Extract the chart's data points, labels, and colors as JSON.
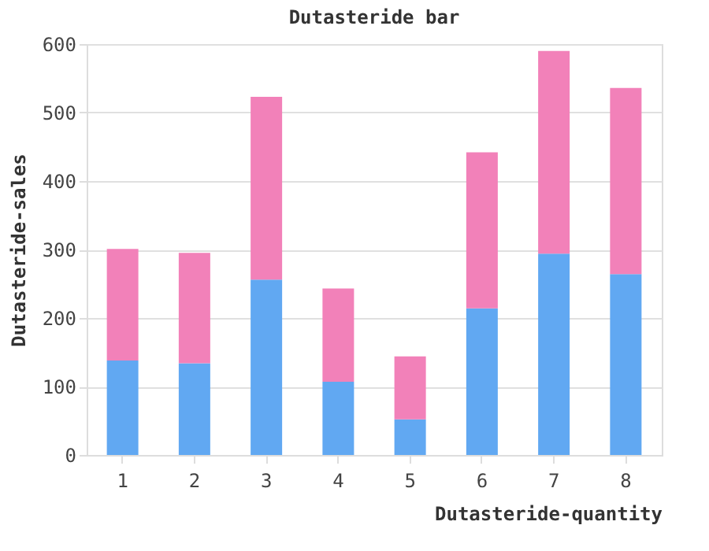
{
  "chart_data": {
    "type": "bar",
    "title": "Dutasteride bar",
    "xlabel": "Dutasteride-quantity",
    "ylabel": "Dutasteride-sales",
    "categories": [
      "1",
      "2",
      "3",
      "4",
      "5",
      "6",
      "7",
      "8"
    ],
    "series": [
      {
        "color": "#61a8f2",
        "values": [
          138,
          134,
          256,
          107,
          52,
          214,
          294,
          264
        ]
      },
      {
        "color": "#f281b9",
        "values": [
          163,
          161,
          267,
          136,
          92,
          228,
          296,
          272
        ]
      }
    ],
    "stacked": true,
    "ylim": [
      0,
      600
    ],
    "yticks": [
      0,
      100,
      200,
      300,
      400,
      500,
      600
    ],
    "grid": "y"
  }
}
